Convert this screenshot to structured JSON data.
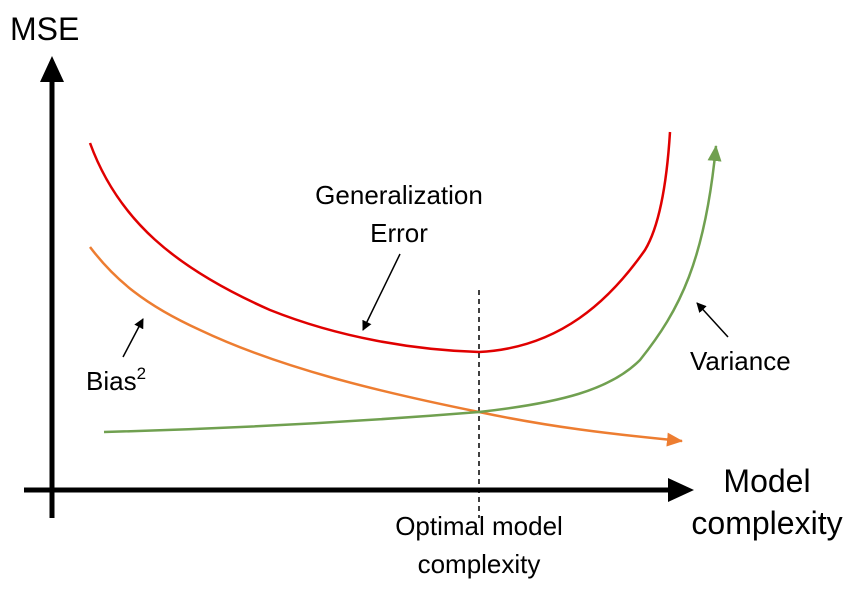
{
  "diagram": {
    "y_axis_label": "MSE",
    "x_axis_label_line1": "Model",
    "x_axis_label_line2": "complexity",
    "curves": {
      "generalization_error": {
        "label_line1": "Generalization",
        "label_line2": "Error",
        "color": "#e00000"
      },
      "bias_squared": {
        "label": "Bias",
        "label_superscript": "2",
        "color": "#ed7d31"
      },
      "variance": {
        "label": "Variance",
        "color": "#70a050"
      }
    },
    "optimum": {
      "label_line1": "Optimal model",
      "label_line2": "complexity"
    },
    "axis_color": "#000000"
  }
}
